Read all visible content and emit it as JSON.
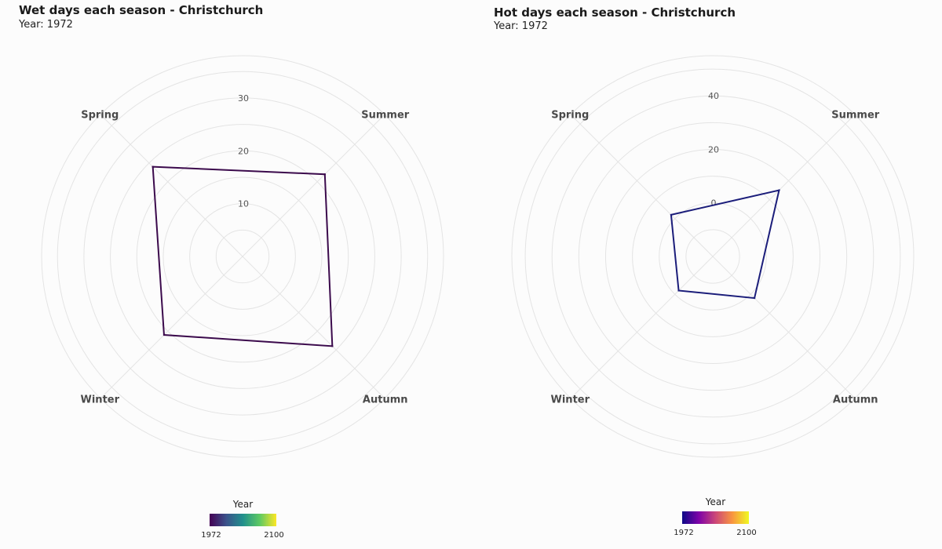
{
  "chart_data": [
    {
      "type": "radar",
      "title": "Wet days each season - Christchurch",
      "subtitle": "Year: 1972",
      "categories": [
        "Spring",
        "Summer",
        "Autumn",
        "Winter"
      ],
      "radial_ticks": [
        10,
        20,
        30
      ],
      "rlim": [
        0,
        38
      ],
      "series": [
        {
          "name": "1972",
          "values": [
            24,
            22,
            24,
            21
          ]
        }
      ],
      "grid": true,
      "legend": {
        "title": "Year",
        "min_label": "1972",
        "max_label": "2100",
        "colormap": "viridis",
        "placement": "bottom"
      }
    },
    {
      "type": "radar",
      "title": "Hot days each season - Christchurch",
      "subtitle": "Year: 1972",
      "categories": [
        "Spring",
        "Summer",
        "Autumn",
        "Winter"
      ],
      "radial_ticks": [
        0,
        20,
        40
      ],
      "rlim": [
        -20,
        55
      ],
      "series": [
        {
          "name": "1972",
          "values": [
            2,
            15,
            2,
            -2
          ]
        }
      ],
      "grid": true,
      "legend": {
        "title": "Year",
        "min_label": "1972",
        "max_label": "2100",
        "colormap": "plasma",
        "placement": "bottom"
      }
    }
  ],
  "colors": {
    "wet_line": "#3b0a4c",
    "hot_line": "#1b1d7a",
    "grid": "#e4e4e4"
  }
}
